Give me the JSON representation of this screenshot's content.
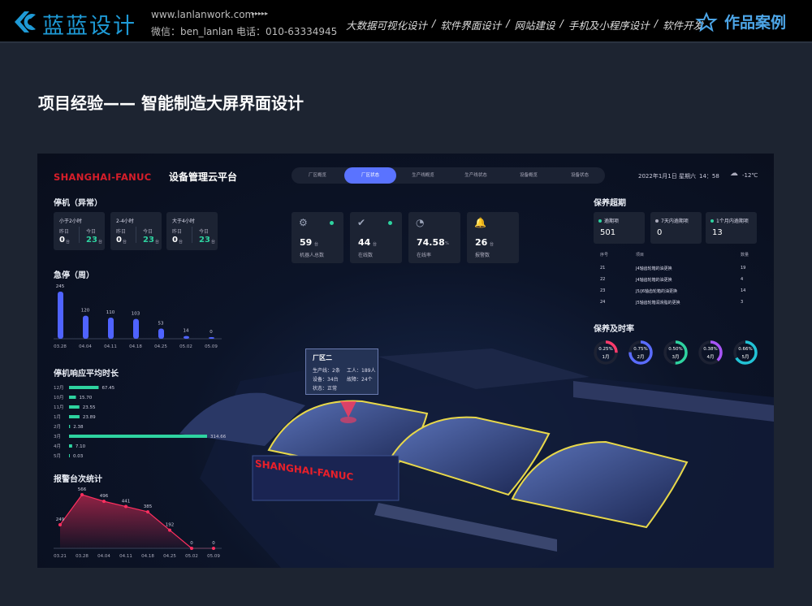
{
  "topbar": {
    "brand": "蓝蓝设计",
    "website": "www.lanlanwork.com",
    "arrows": "▸▸▸▸▸",
    "wechat": "微信：ben_lanlan",
    "phone": "电话：010-63334945",
    "nav": [
      "大数据可视化设计",
      "软件界面设计",
      "网站建设",
      "手机及小程序设计",
      "软件开发"
    ],
    "separator": "/",
    "cases": "作品案例",
    "brand_color": "#1e9ad6"
  },
  "page_title": "项目经验—— 智能制造大屏界面设计",
  "dashboard": {
    "logo": "SHANGHAI-FANUC",
    "title": "设备管理云平台",
    "tabs": [
      {
        "label": "厂区概览"
      },
      {
        "label": "厂区状态",
        "active": true
      },
      {
        "label": "生产线概览"
      },
      {
        "label": "生产线状态"
      },
      {
        "label": "设备概览"
      },
      {
        "label": "设备状态"
      }
    ],
    "datetime": "2022年1月1日 星期六",
    "time": "14：58",
    "weather_icon": "snow-cloud-icon",
    "temperature": "-12℃",
    "downtime": {
      "title": "停机（异常）",
      "cards": [
        {
          "label": "小于2小时",
          "yesterday_label": "昨日",
          "yesterday": "0",
          "today_label": "今日",
          "today": "23",
          "unit": "台"
        },
        {
          "label": "2-4小时",
          "yesterday_label": "昨日",
          "yesterday": "0",
          "today_label": "今日",
          "today": "23",
          "unit": "台"
        },
        {
          "label": "大于4小时",
          "yesterday_label": "昨日",
          "yesterday": "0",
          "today_label": "今日",
          "today": "23",
          "unit": "台"
        }
      ]
    },
    "stats": [
      {
        "icon": "robot-arm-icon",
        "value": "59",
        "unit": "台",
        "label": "机器人总数",
        "dot": true
      },
      {
        "icon": "check-icon",
        "value": "44",
        "unit": "台",
        "label": "在线数",
        "dot": true
      },
      {
        "icon": "pie-icon",
        "value": "74.58",
        "unit": "%",
        "label": "在线率"
      },
      {
        "icon": "bell-icon",
        "value": "26",
        "unit": "台",
        "label": "报警数"
      }
    ],
    "overdue": {
      "title": "保养超期",
      "cards": [
        {
          "label": "逾期项",
          "value": "501",
          "color": "#2ed3a0"
        },
        {
          "label": "7天内逾期项",
          "value": "0",
          "color": "#aab"
        },
        {
          "label": "1个月内逾期项",
          "value": "13",
          "color": "#2ed3a0"
        }
      ],
      "table": {
        "headers": [
          "序号",
          "项目",
          "数量"
        ],
        "rows": [
          [
            "21",
            "J4轴齿轮箱的油更换",
            "19"
          ],
          [
            "22",
            "J4轴齿轮箱的油更换",
            "4"
          ],
          [
            "23",
            "J5/J6轴齿轮箱的油更换",
            "14"
          ],
          [
            "24",
            "J5轴齿轮箱润滑脂的更换",
            "3"
          ]
        ]
      }
    },
    "ontime": {
      "title": "保养及时率",
      "items": [
        {
          "value": "0.25%",
          "month": "1月",
          "fraction": 0.25,
          "color": "#ff3b6b"
        },
        {
          "value": "0.75%",
          "month": "2月",
          "fraction": 0.75,
          "color": "#5a6cff"
        },
        {
          "value": "0.50%",
          "month": "3月",
          "fraction": 0.5,
          "color": "#2ed3a0"
        },
        {
          "value": "0.38%",
          "month": "4月",
          "fraction": 0.38,
          "color": "#a855f7"
        },
        {
          "value": "0.66%",
          "month": "5月",
          "fraction": 0.66,
          "color": "#22c3d6"
        }
      ]
    },
    "tooltip": {
      "title": "厂区二",
      "line": "生产线：2条",
      "workers": "工人：189人",
      "devices": "设备：34台",
      "faults": "故障：24个",
      "status": "状态：正常"
    },
    "building_sign": "SHANGHAI-FANUC"
  },
  "chart_data": [
    {
      "type": "bar",
      "title": "急停（周）",
      "categories": [
        "03.28",
        "04.04",
        "04.11",
        "04.18",
        "04.25",
        "05.02",
        "05.09"
      ],
      "values": [
        245,
        120,
        110,
        103,
        53,
        14,
        0
      ],
      "color": "#4f63ff"
    },
    {
      "type": "bar",
      "orientation": "horizontal",
      "title": "停机响应平均时长",
      "categories": [
        "12月",
        "10月",
        "11月",
        "1月",
        "2月",
        "3月",
        "4月",
        "5月"
      ],
      "values": [
        67.45,
        15.7,
        23.55,
        23.89,
        2.38,
        314.66,
        7.1,
        0.03
      ],
      "labels": [
        "67.45",
        "15.70",
        "23.55",
        "23.89",
        "2.38",
        "314.66",
        "7.10",
        "0.03"
      ],
      "color": "#2ed3a0"
    },
    {
      "type": "area",
      "title": "报警台次统计",
      "categories": [
        "03.21",
        "03.28",
        "04.04",
        "04.11",
        "04.18",
        "04.25",
        "05.02",
        "05.09"
      ],
      "values": [
        249,
        566,
        496,
        441,
        385,
        192,
        0,
        0
      ],
      "color": "#ff2f5f"
    }
  ]
}
